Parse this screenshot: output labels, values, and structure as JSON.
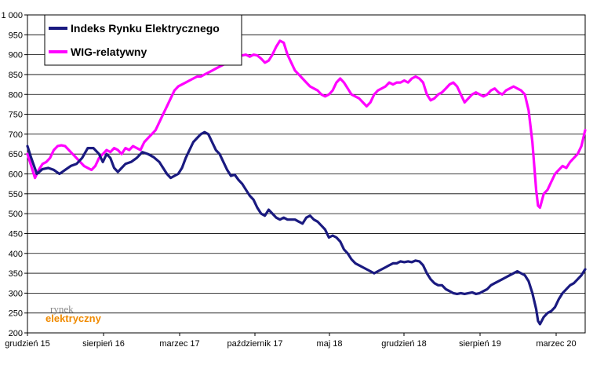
{
  "watermark": {
    "line1": "rynek",
    "line2": "elektryczny"
  },
  "chart_data": {
    "type": "line",
    "title": "",
    "xlabel": "",
    "ylabel": "",
    "ylim": [
      200,
      1000
    ],
    "yticks": [
      200,
      250,
      300,
      350,
      400,
      450,
      500,
      550,
      600,
      650,
      700,
      750,
      800,
      850,
      900,
      950,
      1000
    ],
    "ytick_labels": [
      "200",
      "250",
      "300",
      "350",
      "400",
      "450",
      "500",
      "550",
      "600",
      "650",
      "700",
      "750",
      "800",
      "850",
      "900",
      "950",
      "1 000"
    ],
    "xtick_labels": [
      "grudzień 15",
      "sierpień 16",
      "marzec 17",
      "październik 17",
      "maj 18",
      "grudzień 18",
      "sierpień 19",
      "marzec 20"
    ],
    "grid": true,
    "legend_position": "top-left",
    "series": [
      {
        "name": "Indeks Rynku Elektrycznego",
        "color": "#1a1a80",
        "points": [
          [
            0,
            670
          ],
          [
            2,
            640
          ],
          [
            5,
            600
          ],
          [
            8,
            612
          ],
          [
            11,
            615
          ],
          [
            14,
            610
          ],
          [
            17,
            600
          ],
          [
            20,
            610
          ],
          [
            23,
            620
          ],
          [
            26,
            625
          ],
          [
            29,
            640
          ],
          [
            32,
            665
          ],
          [
            35,
            665
          ],
          [
            38,
            650
          ],
          [
            40,
            630
          ],
          [
            42,
            650
          ],
          [
            44,
            640
          ],
          [
            46,
            615
          ],
          [
            48,
            605
          ],
          [
            50,
            615
          ],
          [
            52,
            625
          ],
          [
            55,
            630
          ],
          [
            58,
            640
          ],
          [
            61,
            655
          ],
          [
            64,
            650
          ],
          [
            67,
            642
          ],
          [
            70,
            630
          ],
          [
            72,
            615
          ],
          [
            74,
            600
          ],
          [
            76,
            590
          ],
          [
            78,
            595
          ],
          [
            80,
            600
          ],
          [
            82,
            615
          ],
          [
            84,
            640
          ],
          [
            86,
            660
          ],
          [
            88,
            680
          ],
          [
            90,
            690
          ],
          [
            92,
            700
          ],
          [
            94,
            705
          ],
          [
            96,
            700
          ],
          [
            98,
            680
          ],
          [
            100,
            660
          ],
          [
            102,
            650
          ],
          [
            104,
            630
          ],
          [
            106,
            610
          ],
          [
            108,
            595
          ],
          [
            110,
            598
          ],
          [
            112,
            585
          ],
          [
            114,
            575
          ],
          [
            116,
            560
          ],
          [
            118,
            545
          ],
          [
            120,
            535
          ],
          [
            122,
            515
          ],
          [
            124,
            500
          ],
          [
            126,
            495
          ],
          [
            128,
            510
          ],
          [
            130,
            500
          ],
          [
            132,
            490
          ],
          [
            134,
            485
          ],
          [
            136,
            490
          ],
          [
            138,
            485
          ],
          [
            140,
            485
          ],
          [
            142,
            485
          ],
          [
            144,
            480
          ],
          [
            146,
            475
          ],
          [
            148,
            490
          ],
          [
            150,
            495
          ],
          [
            152,
            485
          ],
          [
            154,
            480
          ],
          [
            156,
            470
          ],
          [
            158,
            460
          ],
          [
            160,
            440
          ],
          [
            162,
            445
          ],
          [
            164,
            440
          ],
          [
            166,
            430
          ],
          [
            168,
            410
          ],
          [
            170,
            400
          ],
          [
            172,
            385
          ],
          [
            174,
            375
          ],
          [
            176,
            370
          ],
          [
            178,
            365
          ],
          [
            180,
            360
          ],
          [
            182,
            355
          ],
          [
            184,
            350
          ],
          [
            186,
            355
          ],
          [
            188,
            360
          ],
          [
            190,
            365
          ],
          [
            192,
            370
          ],
          [
            194,
            375
          ],
          [
            196,
            375
          ],
          [
            198,
            380
          ],
          [
            200,
            378
          ],
          [
            202,
            380
          ],
          [
            204,
            378
          ],
          [
            206,
            382
          ],
          [
            208,
            380
          ],
          [
            210,
            370
          ],
          [
            212,
            350
          ],
          [
            214,
            335
          ],
          [
            216,
            325
          ],
          [
            218,
            320
          ],
          [
            220,
            320
          ],
          [
            222,
            310
          ],
          [
            224,
            305
          ],
          [
            226,
            300
          ],
          [
            228,
            298
          ],
          [
            230,
            300
          ],
          [
            232,
            298
          ],
          [
            234,
            300
          ],
          [
            236,
            302
          ],
          [
            238,
            298
          ],
          [
            240,
            300
          ],
          [
            242,
            305
          ],
          [
            244,
            310
          ],
          [
            246,
            320
          ],
          [
            248,
            325
          ],
          [
            250,
            330
          ],
          [
            252,
            335
          ],
          [
            254,
            340
          ],
          [
            256,
            345
          ],
          [
            258,
            350
          ],
          [
            260,
            355
          ],
          [
            262,
            350
          ],
          [
            264,
            345
          ],
          [
            266,
            330
          ],
          [
            268,
            300
          ],
          [
            270,
            260
          ],
          [
            271,
            230
          ],
          [
            272,
            222
          ],
          [
            274,
            240
          ],
          [
            276,
            250
          ],
          [
            278,
            255
          ],
          [
            280,
            265
          ],
          [
            282,
            285
          ],
          [
            284,
            300
          ],
          [
            286,
            310
          ],
          [
            288,
            320
          ],
          [
            290,
            325
          ],
          [
            292,
            335
          ],
          [
            294,
            345
          ],
          [
            296,
            360
          ]
        ]
      },
      {
        "name": "WIG-relatywny",
        "color": "#ff00ff",
        "points": [
          [
            0,
            650
          ],
          [
            2,
            620
          ],
          [
            4,
            590
          ],
          [
            6,
            610
          ],
          [
            8,
            625
          ],
          [
            10,
            630
          ],
          [
            12,
            640
          ],
          [
            14,
            660
          ],
          [
            16,
            670
          ],
          [
            18,
            672
          ],
          [
            20,
            670
          ],
          [
            22,
            660
          ],
          [
            24,
            650
          ],
          [
            26,
            640
          ],
          [
            28,
            630
          ],
          [
            30,
            620
          ],
          [
            32,
            615
          ],
          [
            34,
            610
          ],
          [
            36,
            620
          ],
          [
            38,
            640
          ],
          [
            40,
            650
          ],
          [
            42,
            660
          ],
          [
            44,
            655
          ],
          [
            46,
            665
          ],
          [
            48,
            660
          ],
          [
            50,
            650
          ],
          [
            52,
            665
          ],
          [
            54,
            660
          ],
          [
            56,
            670
          ],
          [
            58,
            665
          ],
          [
            60,
            660
          ],
          [
            62,
            680
          ],
          [
            64,
            690
          ],
          [
            66,
            700
          ],
          [
            68,
            710
          ],
          [
            70,
            730
          ],
          [
            72,
            750
          ],
          [
            74,
            770
          ],
          [
            76,
            790
          ],
          [
            78,
            810
          ],
          [
            80,
            820
          ],
          [
            82,
            825
          ],
          [
            84,
            830
          ],
          [
            86,
            835
          ],
          [
            88,
            840
          ],
          [
            90,
            845
          ],
          [
            92,
            845
          ],
          [
            94,
            850
          ],
          [
            96,
            855
          ],
          [
            98,
            860
          ],
          [
            100,
            865
          ],
          [
            102,
            870
          ],
          [
            104,
            875
          ],
          [
            106,
            880
          ],
          [
            108,
            890
          ],
          [
            110,
            893
          ],
          [
            112,
            895
          ],
          [
            114,
            898
          ],
          [
            116,
            900
          ],
          [
            118,
            895
          ],
          [
            120,
            900
          ],
          [
            122,
            898
          ],
          [
            124,
            890
          ],
          [
            126,
            880
          ],
          [
            128,
            885
          ],
          [
            130,
            900
          ],
          [
            132,
            920
          ],
          [
            134,
            935
          ],
          [
            136,
            930
          ],
          [
            138,
            900
          ],
          [
            140,
            880
          ],
          [
            142,
            860
          ],
          [
            144,
            850
          ],
          [
            146,
            840
          ],
          [
            148,
            830
          ],
          [
            150,
            820
          ],
          [
            152,
            815
          ],
          [
            154,
            810
          ],
          [
            156,
            800
          ],
          [
            158,
            795
          ],
          [
            160,
            800
          ],
          [
            162,
            810
          ],
          [
            164,
            830
          ],
          [
            166,
            840
          ],
          [
            168,
            830
          ],
          [
            170,
            815
          ],
          [
            172,
            800
          ],
          [
            174,
            795
          ],
          [
            176,
            790
          ],
          [
            178,
            780
          ],
          [
            180,
            770
          ],
          [
            182,
            780
          ],
          [
            184,
            800
          ],
          [
            186,
            810
          ],
          [
            188,
            815
          ],
          [
            190,
            820
          ],
          [
            192,
            830
          ],
          [
            194,
            825
          ],
          [
            196,
            830
          ],
          [
            198,
            830
          ],
          [
            200,
            835
          ],
          [
            202,
            830
          ],
          [
            204,
            840
          ],
          [
            206,
            845
          ],
          [
            208,
            840
          ],
          [
            210,
            830
          ],
          [
            212,
            800
          ],
          [
            214,
            785
          ],
          [
            216,
            790
          ],
          [
            218,
            800
          ],
          [
            220,
            805
          ],
          [
            222,
            815
          ],
          [
            224,
            825
          ],
          [
            226,
            830
          ],
          [
            228,
            820
          ],
          [
            230,
            800
          ],
          [
            232,
            780
          ],
          [
            234,
            790
          ],
          [
            236,
            800
          ],
          [
            238,
            805
          ],
          [
            240,
            800
          ],
          [
            242,
            795
          ],
          [
            244,
            800
          ],
          [
            246,
            810
          ],
          [
            248,
            815
          ],
          [
            250,
            805
          ],
          [
            252,
            800
          ],
          [
            254,
            810
          ],
          [
            256,
            815
          ],
          [
            258,
            820
          ],
          [
            260,
            815
          ],
          [
            262,
            810
          ],
          [
            264,
            800
          ],
          [
            266,
            760
          ],
          [
            268,
            680
          ],
          [
            270,
            560
          ],
          [
            271,
            520
          ],
          [
            272,
            515
          ],
          [
            274,
            550
          ],
          [
            276,
            560
          ],
          [
            278,
            580
          ],
          [
            280,
            600
          ],
          [
            282,
            610
          ],
          [
            284,
            620
          ],
          [
            286,
            615
          ],
          [
            288,
            630
          ],
          [
            290,
            640
          ],
          [
            292,
            650
          ],
          [
            294,
            670
          ],
          [
            296,
            710
          ]
        ]
      }
    ]
  }
}
